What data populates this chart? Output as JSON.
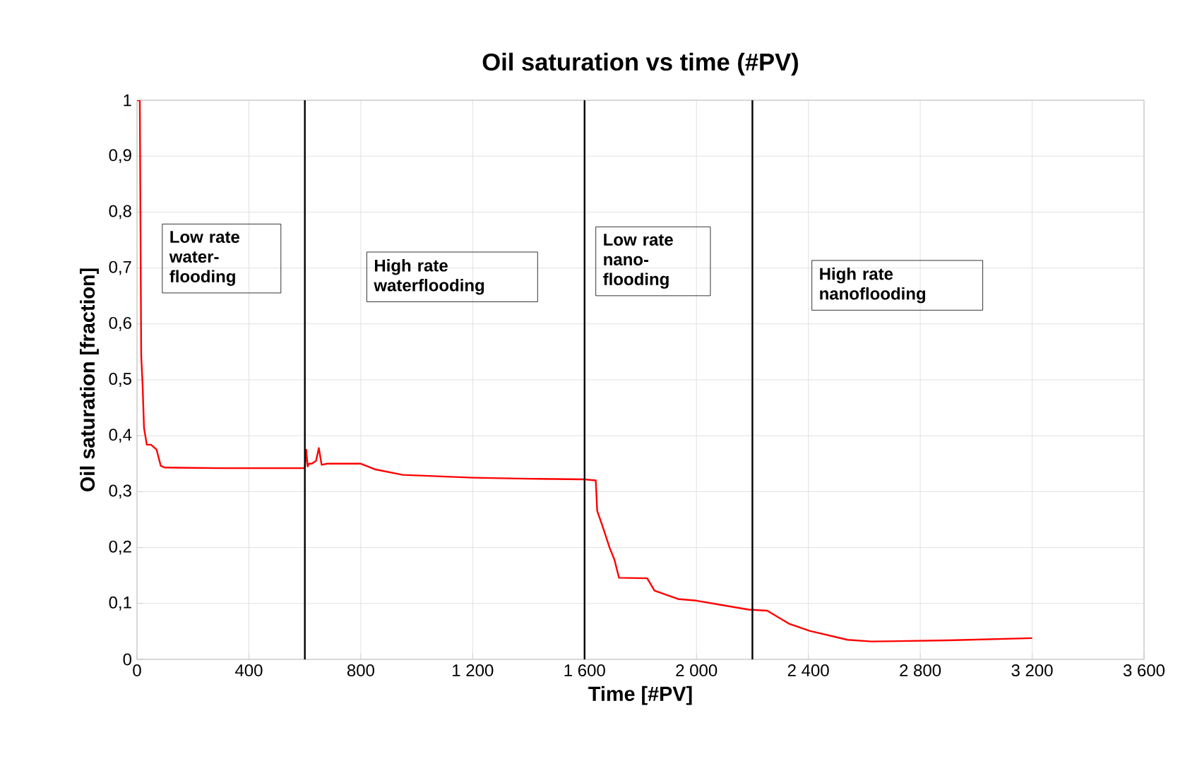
{
  "chart_data": {
    "type": "line",
    "title": "Oil saturation vs time (#PV)",
    "xlabel": "Time [#PV]",
    "ylabel": "Oil saturation [fraction]",
    "x": [
      0,
      10,
      15,
      20,
      25,
      35,
      50,
      70,
      85,
      100,
      300,
      600,
      605,
      610,
      615,
      625,
      640,
      650,
      660,
      680,
      700,
      800,
      850,
      950,
      1200,
      1400,
      1600,
      1640,
      1645,
      1665,
      1690,
      1707,
      1723,
      1824,
      1850,
      1934,
      2000,
      2187,
      2253,
      2330,
      2405,
      2540,
      2626,
      2900,
      3200
    ],
    "series": [
      {
        "color": "#ff0000",
        "values": [
          1.0,
          1.0,
          0.544,
          0.49,
          0.414,
          0.384,
          0.384,
          0.375,
          0.346,
          0.343,
          0.342,
          0.342,
          0.375,
          0.345,
          0.35,
          0.35,
          0.355,
          0.378,
          0.348,
          0.35,
          0.35,
          0.35,
          0.34,
          0.33,
          0.325,
          0.323,
          0.322,
          0.32,
          0.266,
          0.237,
          0.199,
          0.178,
          0.146,
          0.145,
          0.123,
          0.108,
          0.105,
          0.089,
          0.087,
          0.064,
          0.051,
          0.035,
          0.032,
          0.034,
          0.038
        ]
      }
    ],
    "xlim": [
      0,
      3600
    ],
    "ylim": [
      0,
      1
    ],
    "xticks": [
      0,
      400,
      800,
      {
        "value": 1200,
        "label": "1 200"
      },
      {
        "value": 1600,
        "label": "1 600"
      },
      {
        "value": 2000,
        "label": "2 000"
      },
      {
        "value": 2400,
        "label": "2 400"
      },
      {
        "value": 2800,
        "label": "2 800"
      },
      {
        "value": 3200,
        "label": "3 200"
      },
      {
        "value": 3600,
        "label": "3 600"
      }
    ],
    "yticks": [
      0,
      {
        "value": 0.1,
        "label": "0,1"
      },
      {
        "value": 0.2,
        "label": "0,2"
      },
      {
        "value": 0.3,
        "label": "0,3"
      },
      {
        "value": 0.4,
        "label": "0,4"
      },
      {
        "value": 0.5,
        "label": "0,5"
      },
      {
        "value": 0.6,
        "label": "0,6"
      },
      {
        "value": 0.7,
        "label": "0,7"
      },
      {
        "value": 0.8,
        "label": "0,8"
      },
      {
        "value": 0.9,
        "label": "0,9"
      },
      1
    ],
    "grid": true,
    "marker": "none",
    "line_style": "solid",
    "ref_lines": [
      {
        "axis": "x",
        "value": 600,
        "color": "#000000"
      },
      {
        "axis": "x",
        "value": 1600,
        "color": "#000000"
      },
      {
        "axis": "x",
        "value": 2200,
        "color": "#000000"
      }
    ],
    "annotations": [
      "Low rate water-flooding",
      "High rate waterflooding",
      "Low rate nano-flooding",
      "High rate nanoflooding"
    ]
  }
}
